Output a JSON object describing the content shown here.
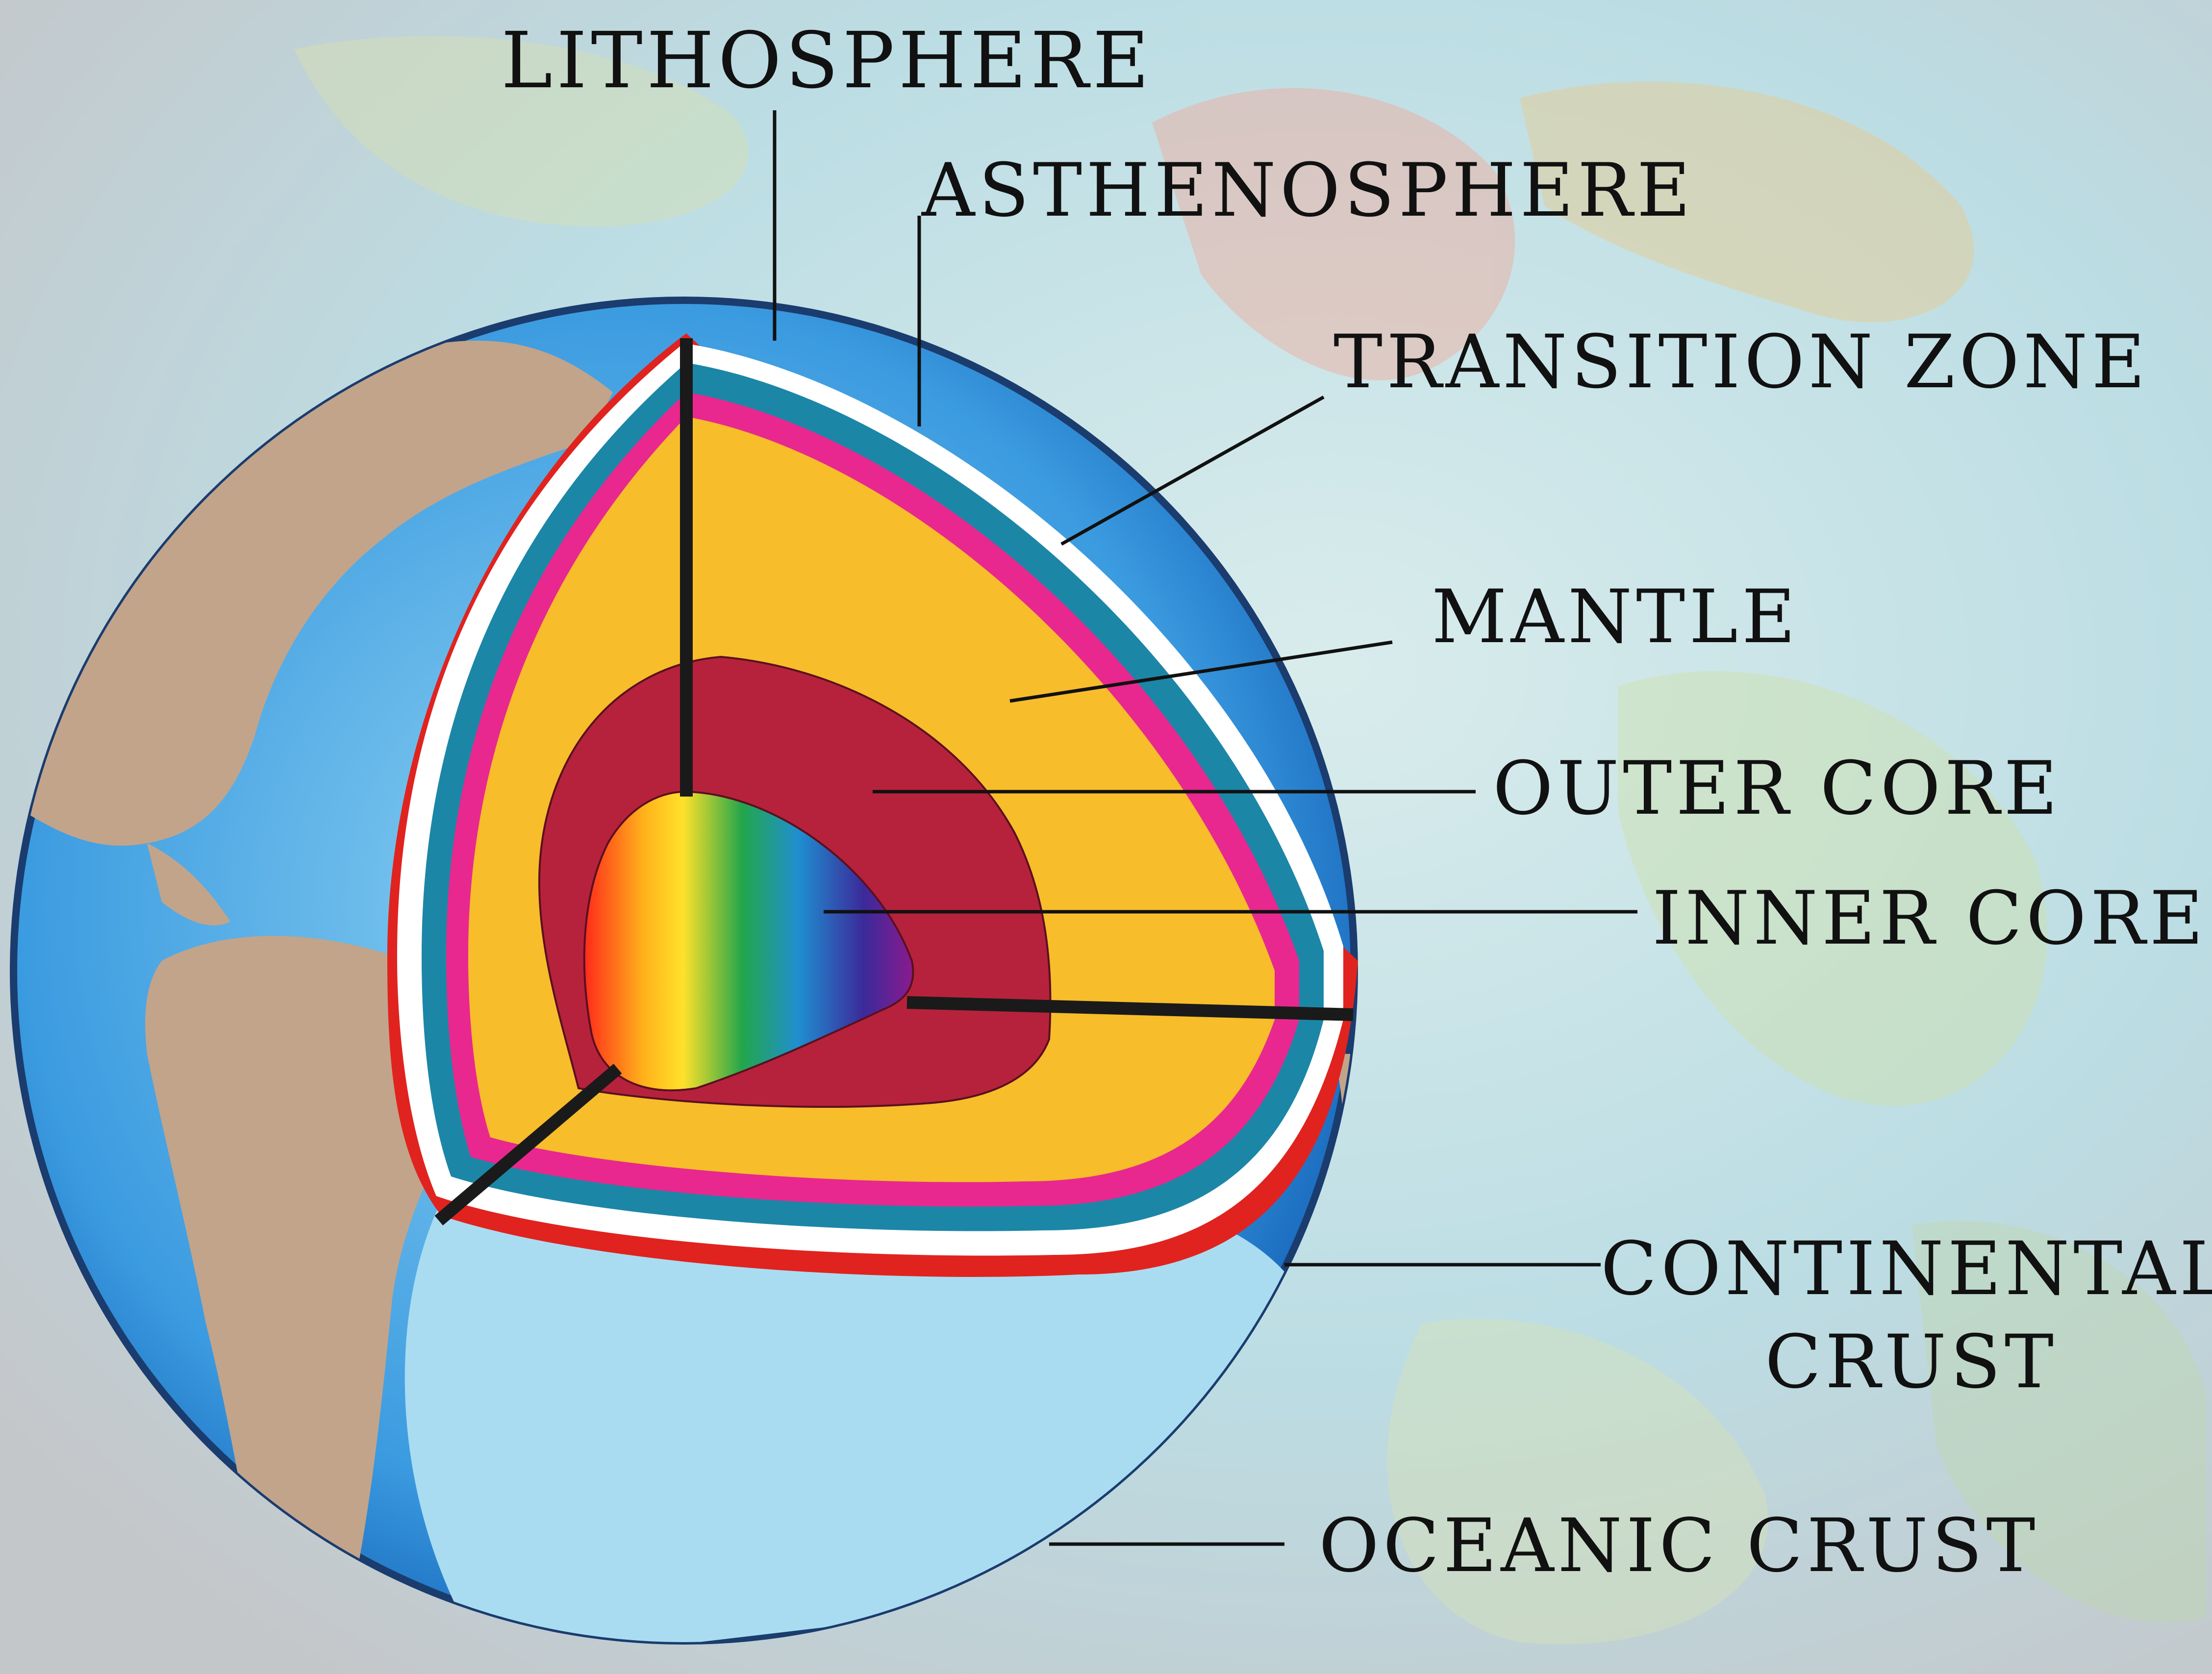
{
  "labels": {
    "lithosphere": "LITHOSPHERE",
    "asthenosphere": "ASTHENOSPHERE",
    "transition_zone": "TRANSITION ZONE",
    "mantle": "MANTLE",
    "outer_core": "OUTER CORE",
    "inner_core": "INNER CORE",
    "continental_crust_line1": "CONTINENTAL",
    "continental_crust_line2": "CRUST",
    "oceanic_crust": "OCEANIC CRUST"
  },
  "colors": {
    "background": "#bfc3c6",
    "ocean_deep": "#1f7fd6",
    "ocean_shallow": "#9fd8ef",
    "land": "#c2a48b",
    "crust_red": "#e0231f",
    "white_band": "#ffffff",
    "asthenosphere": "#1c86a7",
    "transition_zone": "#e8288e",
    "mantle": "#f7bd2a",
    "outer_core": "#b6223c",
    "inner_core_gradient": [
      "#ff2a1a",
      "#ffe12a",
      "#23a64a",
      "#1f8fd0",
      "#3b2a9a",
      "#8a1a8e"
    ],
    "label_ink": "#111111"
  }
}
